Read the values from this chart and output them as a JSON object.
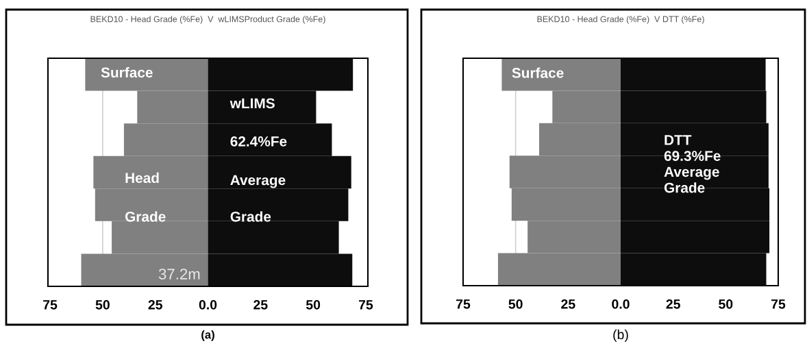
{
  "chart_data": [
    {
      "type": "bar",
      "orientation": "horizontal",
      "stacked": true,
      "title": "BEKD10 - Head Grade (%Fe)  V  wLIMSProduct Grade (%Fe)",
      "categories": [
        null,
        null,
        null,
        null,
        null,
        null,
        null
      ],
      "series": [
        {
          "color": "#808080",
          "values": [
            -58.3,
            -33.6,
            -39.9,
            -54.4,
            -53.6,
            -45.7,
            -60.2
          ]
        },
        {
          "color": "#0d0d0d",
          "values": [
            68.9,
            51.4,
            58.9,
            68.1,
            66.7,
            62.2,
            68.6
          ]
        }
      ],
      "xlim": [
        -76,
        76
      ],
      "xticks": [
        {
          "value": -75,
          "label": "75"
        },
        {
          "value": -50,
          "label": "50"
        },
        {
          "value": -25,
          "label": "25"
        },
        {
          "value": 0,
          "label": "0.0"
        },
        25,
        50,
        75
      ],
      "ref_lines": [
        {
          "axis": "x",
          "value": -50,
          "color": "#d0d0d0"
        }
      ],
      "annotations": [
        "Surface",
        "wLIMS",
        "62.4%Fe",
        "Head",
        "Average",
        "Grade",
        "Grade",
        "37.2m",
        "(a)"
      ],
      "grid": false,
      "legend": false
    },
    {
      "type": "bar",
      "orientation": "horizontal",
      "stacked": true,
      "title": "BEKD10 - Head Grade (%Fe)  V DTT (%Fe)",
      "categories": [
        null,
        null,
        null,
        null,
        null,
        null,
        null
      ],
      "series": [
        {
          "color": "#808080",
          "values": [
            -56.6,
            -32.5,
            -38.8,
            -52.9,
            -51.9,
            -44.3,
            -58.4
          ]
        },
        {
          "color": "#0d0d0d",
          "values": [
            69.0,
            69.3,
            70.4,
            70.4,
            70.8,
            70.8,
            69.3
          ]
        }
      ],
      "xlim": [
        -75,
        75
      ],
      "xticks": [
        {
          "value": -75,
          "label": "75"
        },
        {
          "value": -50,
          "label": "50"
        },
        {
          "value": -25,
          "label": "25"
        },
        {
          "value": 0,
          "label": "0.0"
        },
        25,
        50,
        75
      ],
      "ref_lines": [
        {
          "axis": "x",
          "value": -50,
          "color": "#d0d0d0"
        }
      ],
      "annotations": [
        "Surface",
        "DTT\n69.3%Fe\nAverage\nGrade",
        "(b)"
      ],
      "grid": false,
      "legend": false
    }
  ]
}
